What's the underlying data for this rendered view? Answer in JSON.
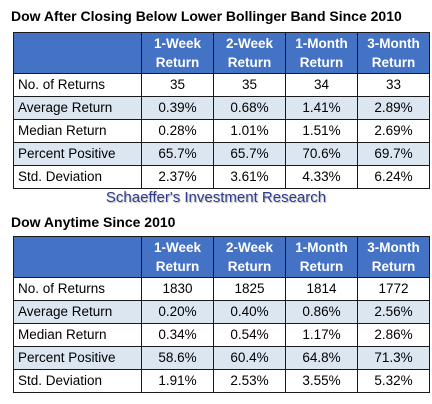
{
  "watermark": "Schaeffer's Investment Research",
  "tables": [
    {
      "title": "Dow After Closing Below Lower Bollinger Band Since 2010",
      "headers": [
        [
          "1-Week",
          "Return"
        ],
        [
          "2-Week",
          "Return"
        ],
        [
          "1-Month",
          "Return"
        ],
        [
          "3-Month",
          "Return"
        ]
      ],
      "rows": [
        {
          "label": "No. of Returns",
          "values": [
            "35",
            "35",
            "34",
            "33"
          ]
        },
        {
          "label": "Average Return",
          "values": [
            "0.39%",
            "0.68%",
            "1.41%",
            "2.89%"
          ]
        },
        {
          "label": "Median Return",
          "values": [
            "0.28%",
            "1.01%",
            "1.51%",
            "2.69%"
          ]
        },
        {
          "label": "Percent Positive",
          "values": [
            "65.7%",
            "65.7%",
            "70.6%",
            "69.7%"
          ]
        },
        {
          "label": "Std. Deviation",
          "values": [
            "2.37%",
            "3.61%",
            "4.33%",
            "6.24%"
          ]
        }
      ]
    },
    {
      "title": "Dow Anytime Since 2010",
      "headers": [
        [
          "1-Week",
          "Return"
        ],
        [
          "2-Week",
          "Return"
        ],
        [
          "1-Month",
          "Return"
        ],
        [
          "3-Month",
          "Return"
        ]
      ],
      "rows": [
        {
          "label": "No. of Returns",
          "values": [
            "1830",
            "1825",
            "1814",
            "1772"
          ]
        },
        {
          "label": "Average Return",
          "values": [
            "0.20%",
            "0.40%",
            "0.86%",
            "2.56%"
          ]
        },
        {
          "label": "Median Return",
          "values": [
            "0.34%",
            "0.54%",
            "1.17%",
            "2.86%"
          ]
        },
        {
          "label": "Percent Positive",
          "values": [
            "58.6%",
            "60.4%",
            "64.8%",
            "71.3%"
          ]
        },
        {
          "label": "Std. Deviation",
          "values": [
            "1.91%",
            "2.53%",
            "3.55%",
            "5.32%"
          ]
        }
      ]
    }
  ],
  "colors": {
    "header_bg": "#4472c4",
    "header_text": "#ffffff",
    "alt_row_bg": "#dce6f1",
    "watermark": "#2f3d8f"
  }
}
